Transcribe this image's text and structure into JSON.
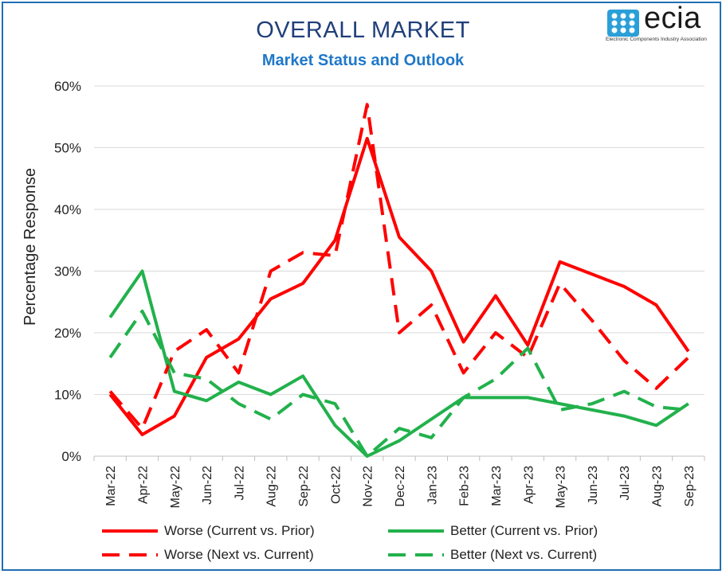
{
  "chart_data": {
    "type": "line",
    "title": "OVERALL MARKET",
    "subtitle": "Market Status and Outlook",
    "ylabel": "Percentage Response",
    "xlabel": "",
    "ylim": [
      0,
      60
    ],
    "yticks": [
      "0%",
      "10%",
      "20%",
      "30%",
      "40%",
      "50%",
      "60%"
    ],
    "grid": "horizontal",
    "legend_position": "bottom",
    "categories": [
      "Mar-22",
      "Apr-22",
      "May-22",
      "Jun-22",
      "Jul-22",
      "Aug-22",
      "Sep-22",
      "Oct-22",
      "Nov-22",
      "Dec-22",
      "Jan-23",
      "Feb-23",
      "Mar-23",
      "Apr-23",
      "May-23",
      "Jun-23",
      "Jul-23",
      "Aug-23",
      "Sep-23"
    ],
    "series": [
      {
        "name": "Worse (Current vs. Prior)",
        "color": "#ff0000",
        "style": "solid",
        "values": [
          10,
          3.5,
          6.5,
          16,
          19,
          25.5,
          28,
          35,
          51.5,
          35.5,
          30,
          18.5,
          26,
          18,
          31.5,
          29.5,
          27.5,
          24.5,
          17
        ]
      },
      {
        "name": "Better (Current vs. Prior)",
        "color": "#22b14c",
        "style": "solid",
        "values": [
          22.5,
          30,
          10.5,
          9,
          12,
          10,
          13,
          5,
          0,
          2.5,
          6,
          9.5,
          9.5,
          9.5,
          8.5,
          7.5,
          6.5,
          5,
          8.5
        ]
      },
      {
        "name": "Worse (Next vs. Current)",
        "color": "#ff0000",
        "style": "dashed",
        "values": [
          10.5,
          4.5,
          17,
          20.5,
          13.5,
          30,
          33,
          32.5,
          57,
          20,
          24.5,
          13.5,
          20,
          16,
          28,
          22,
          15.5,
          11,
          16
        ]
      },
      {
        "name": "Better (Next vs. Current)",
        "color": "#22b14c",
        "style": "dashed",
        "values": [
          16,
          23.5,
          13.5,
          12.5,
          8.5,
          6,
          10,
          8.5,
          0,
          4.5,
          3,
          9.5,
          12.5,
          17.5,
          7.5,
          8.5,
          10.5,
          8,
          7.5
        ]
      }
    ]
  },
  "logo": {
    "text": "ecia",
    "tagline": "Electronic Components Industry Association",
    "color": "#2a9fd8"
  }
}
